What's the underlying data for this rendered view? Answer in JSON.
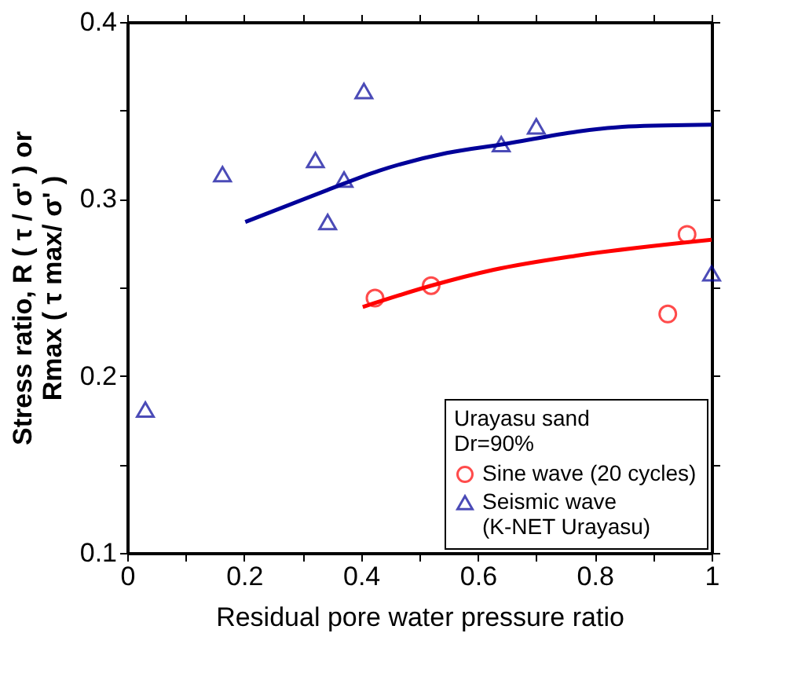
{
  "chart_data": {
    "type": "scatter",
    "xlabel": "Residual pore water pressure ratio",
    "ylabel": "Stress ratio, R ( τ / σ' ) or\nRmax ( τ max/ σ' )",
    "legend_title": "Urayasu sand\nDr=90%",
    "legend": "bottom right",
    "grid": false,
    "xlim": [
      0,
      1
    ],
    "ylim": [
      0.1,
      0.4
    ],
    "xticks": [
      0,
      {
        "value": 0.1,
        "label": null
      },
      0.2,
      {
        "value": 0.3,
        "label": null
      },
      0.4,
      {
        "value": 0.5,
        "label": null
      },
      0.6,
      {
        "value": 0.7,
        "label": null
      },
      0.8,
      {
        "value": 0.9,
        "label": null
      },
      1
    ],
    "yticks": [
      0.1,
      {
        "value": 0.15,
        "label": null
      },
      0.2,
      {
        "value": 0.25,
        "label": null
      },
      0.3,
      {
        "value": 0.35,
        "label": null
      },
      0.4
    ],
    "series": [
      {
        "name": "Sine wave (20 cycles)",
        "marker": "circle",
        "color": "#ff0000",
        "x": [
          0.424,
          0.52,
          0.958,
          0.925
        ],
        "values": [
          0.244,
          0.251,
          0.28,
          0.235
        ]
      },
      {
        "name": "Seismic wave\n(K-NET Urayasu)",
        "marker": "triangle",
        "color": "#000099",
        "x": [
          0.031,
          0.163,
          0.322,
          0.343,
          0.371,
          0.405,
          0.64,
          0.7,
          1.0
        ],
        "values": [
          0.181,
          0.314,
          0.322,
          0.287,
          0.311,
          0.361,
          0.331,
          0.341,
          0.258
        ]
      },
      {
        "type": "line",
        "color": "#ff0000",
        "x": [
          0.403,
          0.52,
          0.627,
          0.769,
          1.0
        ],
        "values": [
          0.239,
          0.251,
          0.26,
          0.268,
          0.277
        ]
      },
      {
        "type": "line",
        "color": "#000099",
        "x": [
          0.202,
          0.342,
          0.431,
          0.547,
          0.645,
          0.769,
          0.858,
          1.0
        ],
        "values": [
          0.287,
          0.305,
          0.316,
          0.326,
          0.331,
          0.338,
          0.341,
          0.342
        ]
      }
    ]
  }
}
